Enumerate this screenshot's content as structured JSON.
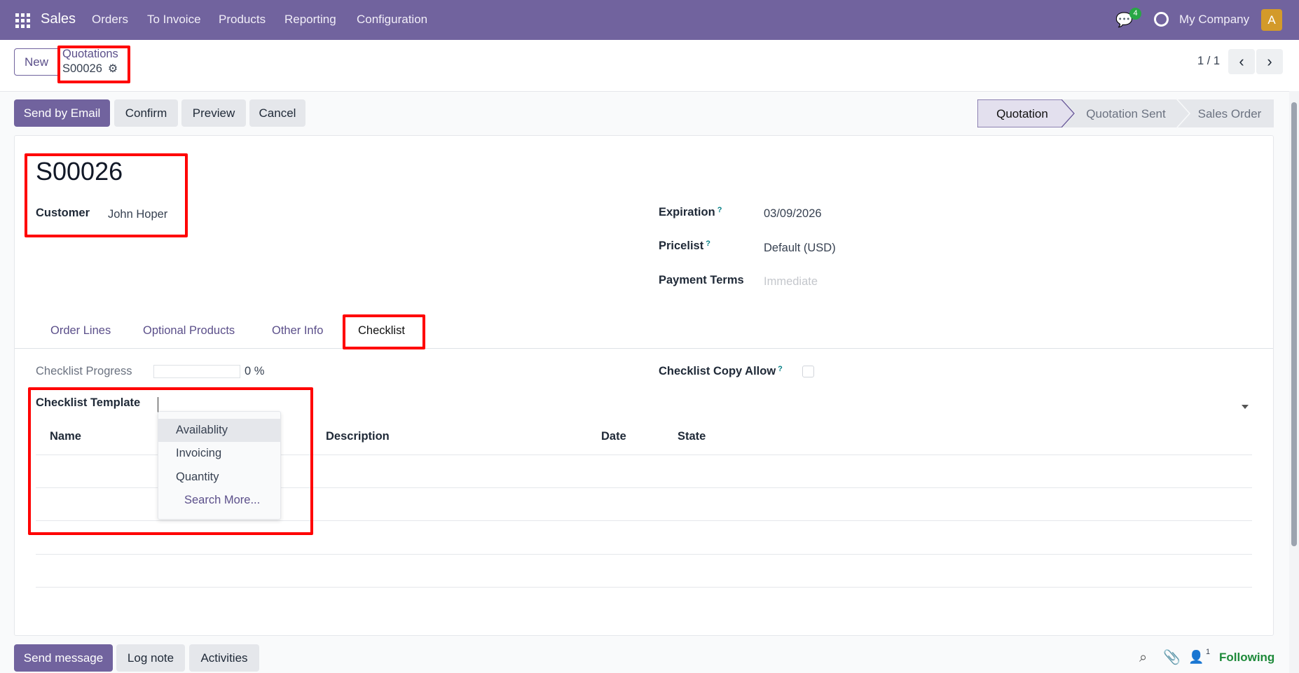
{
  "navbar": {
    "app": "Sales",
    "menu": [
      "Orders",
      "To Invoice",
      "Products",
      "Reporting",
      "Configuration"
    ],
    "message_count": "4",
    "company": "My Company",
    "avatar_letter": "A",
    "color": "#71639e"
  },
  "control": {
    "new_label": "New",
    "breadcrumb_parent": "Quotations",
    "breadcrumb_current": "S00026",
    "pager": "1 / 1"
  },
  "actions": {
    "send_email": "Send by Email",
    "confirm": "Confirm",
    "preview": "Preview",
    "cancel": "Cancel"
  },
  "status": {
    "steps": [
      "Quotation",
      "Quotation Sent",
      "Sales Order"
    ],
    "active": "Quotation"
  },
  "form": {
    "name": "S00026",
    "customer_label": "Customer",
    "customer": "John Hoper",
    "expiration_label": "Expiration",
    "expiration": "03/09/2026",
    "pricelist_label": "Pricelist",
    "pricelist": "Default (USD)",
    "payment_terms_label": "Payment Terms",
    "payment_terms_placeholder": "Immediate",
    "help": "?"
  },
  "tabs": [
    "Order Lines",
    "Optional Products",
    "Other Info",
    "Checklist"
  ],
  "active_tab": "Checklist",
  "checklist": {
    "progress_label": "Checklist Progress",
    "progress_percent": 0,
    "progress_text": "0 %",
    "copy_allow_label": "Checklist Copy Allow",
    "copy_allow": false,
    "template_label": "Checklist Template",
    "columns": [
      "Name",
      "Description",
      "Date",
      "State"
    ],
    "dropdown": [
      "Availablity",
      "Invoicing",
      "Quantity"
    ],
    "search_more": "Search More..."
  },
  "chatter": {
    "send_message": "Send message",
    "log_note": "Log note",
    "activities": "Activities",
    "followers": "1",
    "following": "Following"
  }
}
